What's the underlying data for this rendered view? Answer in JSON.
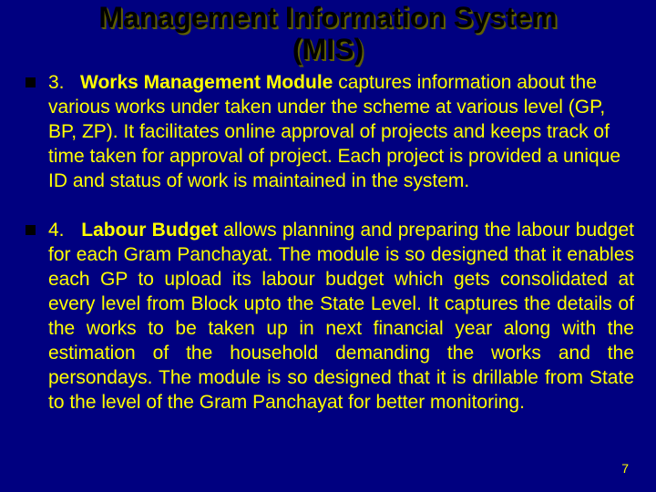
{
  "title_line1": "Management Information System",
  "title_line2": "(MIS)",
  "items": [
    {
      "num": "3.",
      "bold": "Works Management Module",
      "rest": " captures information about the various works under taken under the scheme at various level (GP, BP, ZP). It facilitates online approval of projects and keeps track of time taken for approval of project. Each project is provided a unique ID and status of work is maintained in the system.",
      "justify": false
    },
    {
      "num": "4.",
      "bold": "Labour Budget",
      "rest": " allows planning and preparing the labour budget for each Gram Panchayat. The module is so designed that it enables each GP to upload its labour budget which gets consolidated at every level from Block upto the State Level. It captures the details of the works to be taken up in next financial year along with the estimation of the household demanding the works and the persondays. The module is so designed that it is drillable from State to the level of the Gram Panchayat for better monitoring.",
      "justify": true
    }
  ],
  "page_number": "7",
  "colors": {
    "background": "#000080",
    "title": "#000000",
    "body_text": "#ffff00",
    "bullet": "#000000"
  },
  "typography": {
    "title_fontsize": 32,
    "body_fontsize": 21,
    "pagenum_fontsize": 14,
    "font_family": "Arial"
  }
}
